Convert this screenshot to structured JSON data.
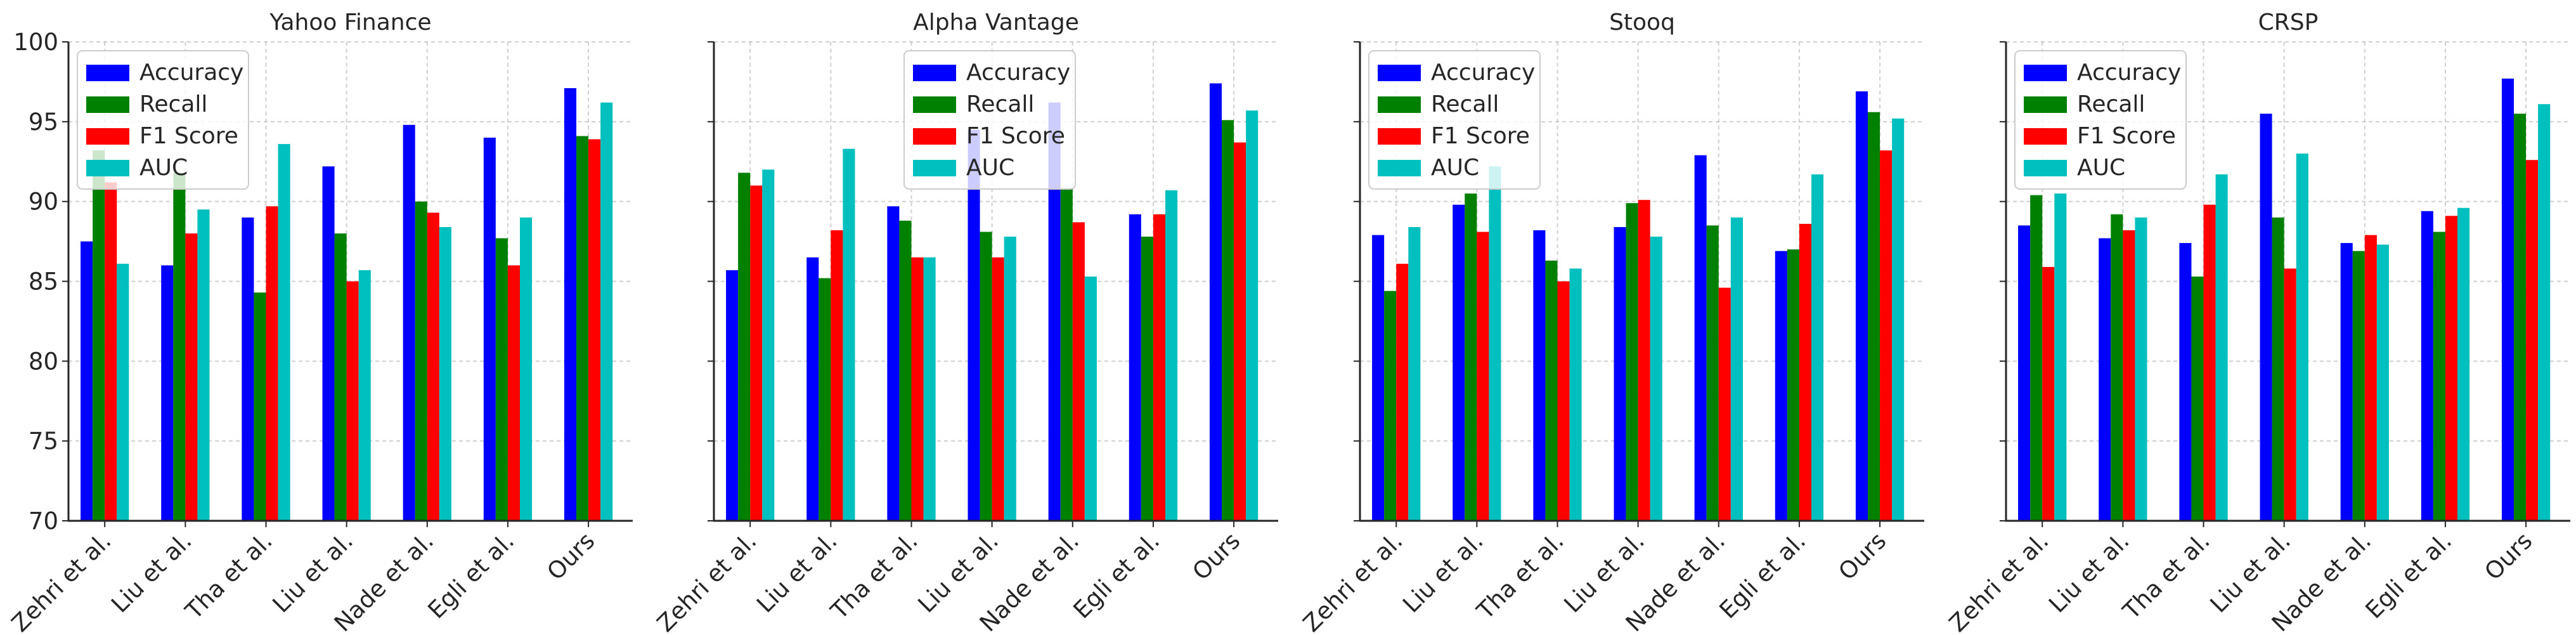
{
  "figure": {
    "colors": {
      "Accuracy": "#0000ff",
      "Recall": "#008000",
      "F1 Score": "#ff0000",
      "AUC": "#00bfbf",
      "grid": "#b0b0b0",
      "axis": "#262626"
    }
  },
  "chart_data": [
    {
      "type": "bar",
      "title": "Yahoo Finance",
      "categories": [
        "Zehri et al.",
        "Liu et al.",
        "Tha et al.",
        "Liu et al.",
        "Nade et al.",
        "Egli et al.",
        "Ours"
      ],
      "series": [
        {
          "name": "Accuracy",
          "values": [
            87.5,
            86.0,
            89.0,
            92.2,
            94.8,
            94.0,
            97.1
          ]
        },
        {
          "name": "Recall",
          "values": [
            93.2,
            91.8,
            84.3,
            88.0,
            90.0,
            87.7,
            94.1
          ]
        },
        {
          "name": "F1 Score",
          "values": [
            91.2,
            88.0,
            89.7,
            85.0,
            89.3,
            86.0,
            93.9
          ]
        },
        {
          "name": "AUC",
          "values": [
            86.1,
            89.5,
            93.6,
            85.7,
            88.4,
            89.0,
            96.2
          ]
        }
      ],
      "ylim": [
        70,
        100
      ],
      "yticks": [
        "70",
        "75",
        "80",
        "85",
        "90",
        "95",
        "100"
      ],
      "show_ytick_labels": true,
      "legend": "top-left",
      "grid": true
    },
    {
      "type": "bar",
      "title": "Alpha Vantage",
      "categories": [
        "Zehri et al.",
        "Liu et al.",
        "Tha et al.",
        "Liu et al.",
        "Nade et al.",
        "Egli et al.",
        "Ours"
      ],
      "series": [
        {
          "name": "Accuracy",
          "values": [
            85.7,
            86.5,
            89.7,
            94.5,
            96.2,
            89.2,
            97.4
          ]
        },
        {
          "name": "Recall",
          "values": [
            91.8,
            85.2,
            88.8,
            88.1,
            90.8,
            87.8,
            95.1
          ]
        },
        {
          "name": "F1 Score",
          "values": [
            91.0,
            88.2,
            86.5,
            86.5,
            88.7,
            89.2,
            93.7
          ]
        },
        {
          "name": "AUC",
          "values": [
            92.0,
            93.3,
            86.5,
            87.8,
            85.3,
            90.7,
            95.7
          ]
        }
      ],
      "ylim": [
        70,
        100
      ],
      "yticks": [
        "70",
        "75",
        "80",
        "85",
        "90",
        "95",
        "100"
      ],
      "show_ytick_labels": false,
      "legend": "top-center",
      "grid": true
    },
    {
      "type": "bar",
      "title": "Stooq",
      "categories": [
        "Zehri et al.",
        "Liu et al.",
        "Tha et al.",
        "Liu et al.",
        "Nade et al.",
        "Egli et al.",
        "Ours"
      ],
      "series": [
        {
          "name": "Accuracy",
          "values": [
            87.9,
            89.8,
            88.2,
            88.4,
            92.9,
            86.9,
            96.9
          ]
        },
        {
          "name": "Recall",
          "values": [
            84.4,
            90.5,
            86.3,
            89.9,
            88.5,
            87.0,
            95.6
          ]
        },
        {
          "name": "F1 Score",
          "values": [
            86.1,
            88.1,
            85.0,
            90.1,
            84.6,
            88.6,
            93.2
          ]
        },
        {
          "name": "AUC",
          "values": [
            88.4,
            92.2,
            85.8,
            87.8,
            89.0,
            91.7,
            95.2
          ]
        }
      ],
      "ylim": [
        70,
        100
      ],
      "yticks": [
        "70",
        "75",
        "80",
        "85",
        "90",
        "95",
        "100"
      ],
      "show_ytick_labels": false,
      "legend": "top-left",
      "grid": true
    },
    {
      "type": "bar",
      "title": "CRSP",
      "categories": [
        "Zehri et al.",
        "Liu et al.",
        "Tha et al.",
        "Liu et al.",
        "Nade et al.",
        "Egli et al.",
        "Ours"
      ],
      "series": [
        {
          "name": "Accuracy",
          "values": [
            88.5,
            87.7,
            87.4,
            95.5,
            87.4,
            89.4,
            97.7
          ]
        },
        {
          "name": "Recall",
          "values": [
            90.4,
            89.2,
            85.3,
            89.0,
            86.9,
            88.1,
            95.5
          ]
        },
        {
          "name": "F1 Score",
          "values": [
            85.9,
            88.2,
            89.8,
            85.8,
            87.9,
            89.1,
            92.6
          ]
        },
        {
          "name": "AUC",
          "values": [
            90.5,
            89.0,
            91.7,
            93.0,
            87.3,
            89.6,
            96.1
          ]
        }
      ],
      "ylim": [
        70,
        100
      ],
      "yticks": [
        "70",
        "75",
        "80",
        "85",
        "90",
        "95",
        "100"
      ],
      "show_ytick_labels": false,
      "legend": "top-left",
      "grid": true
    }
  ]
}
